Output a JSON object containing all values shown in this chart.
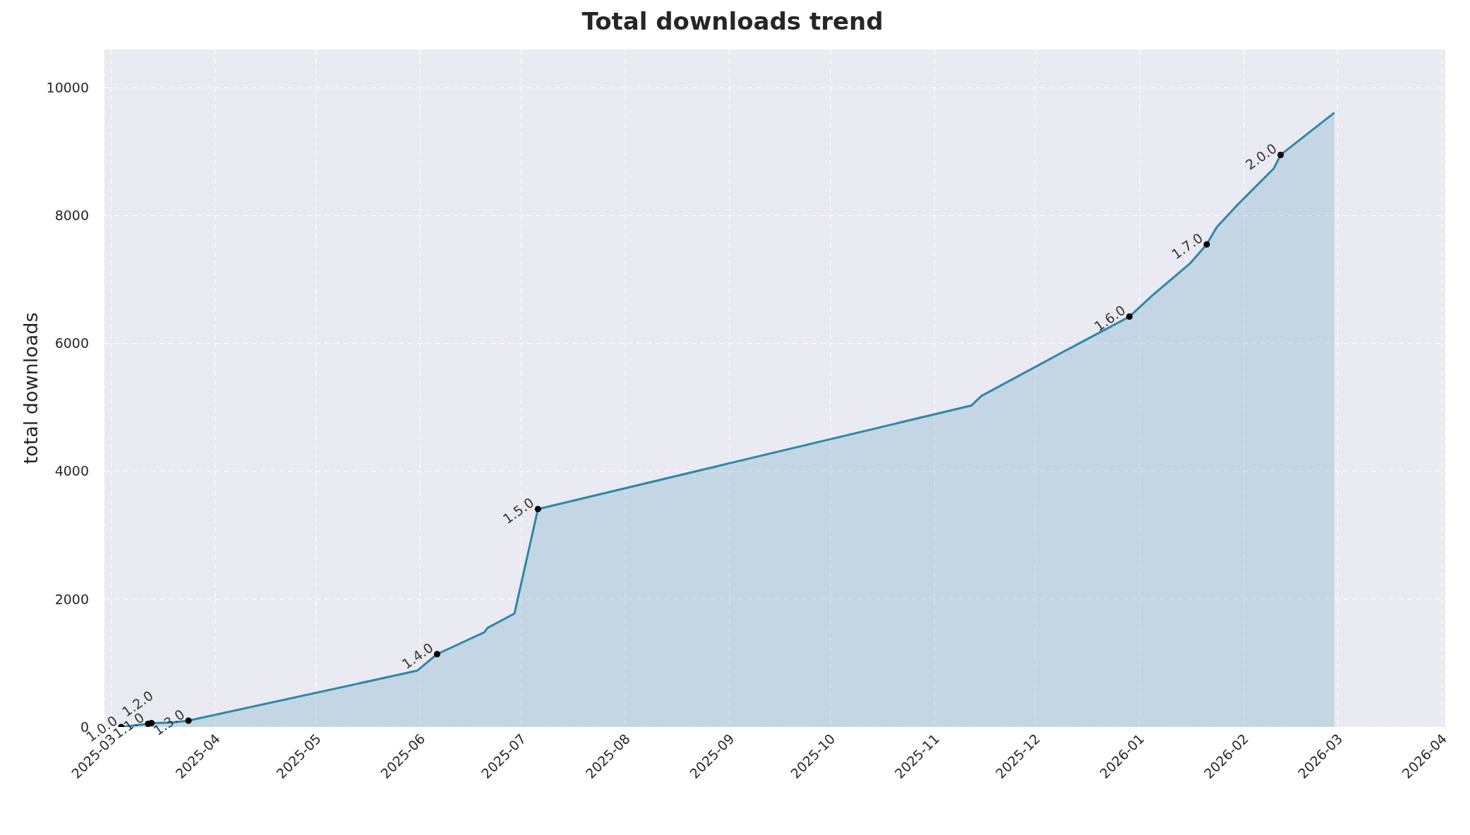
{
  "chart_data": {
    "type": "area",
    "title": "Total downloads trend",
    "ylabel": "total downloads",
    "xlim": [
      "2025-02-27",
      "2026-04-02"
    ],
    "ylim": [
      0,
      10600
    ],
    "xticks": [
      "2025-03",
      "2025-04",
      "2025-05",
      "2025-06",
      "2025-07",
      "2025-08",
      "2025-09",
      "2025-10",
      "2025-11",
      "2025-12",
      "2026-01",
      "2026-02",
      "2026-03",
      "2026-04"
    ],
    "yticks": [
      0,
      2000,
      4000,
      6000,
      8000,
      10000
    ],
    "grid": true,
    "line_style": "solid",
    "series": [
      {
        "color": "#2e86ab",
        "marker": "none",
        "x": [
          "2025-03-04",
          "2025-03-12",
          "2025-03-13",
          "2025-03-19",
          "2025-03-24",
          "2025-05-31",
          "2025-06-06",
          "2025-06-20",
          "2025-06-21",
          "2025-06-29",
          "2025-07-06",
          "2025-11-12",
          "2025-11-15",
          "2025-12-09",
          "2025-12-29",
          "2026-01-05",
          "2026-01-16",
          "2026-01-21",
          "2026-01-24",
          "2026-01-30",
          "2026-02-10",
          "2026-02-12",
          "2026-02-28"
        ],
        "values": [
          0,
          50,
          60,
          70,
          100,
          880,
          1140,
          1480,
          1550,
          1775,
          3410,
          5030,
          5180,
          5860,
          6420,
          6760,
          7250,
          7550,
          7820,
          8160,
          8740,
          8950,
          9610
        ]
      },
      {
        "type": "scatter",
        "color": "#000000",
        "marker": "circle",
        "x": [
          "2025-03-04",
          "2025-03-12",
          "2025-03-13",
          "2025-03-24",
          "2025-06-06",
          "2025-07-06",
          "2025-12-29",
          "2026-01-21",
          "2026-02-12"
        ],
        "values": [
          0,
          50,
          60,
          100,
          1140,
          3410,
          6420,
          7550,
          8950
        ]
      }
    ],
    "annotations": [
      {
        "text": "1.0.0",
        "x": "2025-03-04",
        "y": 0
      },
      {
        "text": "1.1.0",
        "x": "2025-03-12",
        "y": 50
      },
      {
        "text": "1.2.0",
        "x": "2025-03-13",
        "y": 60
      },
      {
        "text": "1.3.0",
        "x": "2025-03-24",
        "y": 100
      },
      {
        "text": "1.4.0",
        "x": "2025-06-06",
        "y": 1140
      },
      {
        "text": "1.5.0",
        "x": "2025-07-06",
        "y": 3410
      },
      {
        "text": "1.6.0",
        "x": "2025-12-29",
        "y": 6420
      },
      {
        "text": "1.7.0",
        "x": "2026-01-21",
        "y": 7550
      },
      {
        "text": "2.0.0",
        "x": "2026-02-12",
        "y": 8950
      }
    ]
  }
}
